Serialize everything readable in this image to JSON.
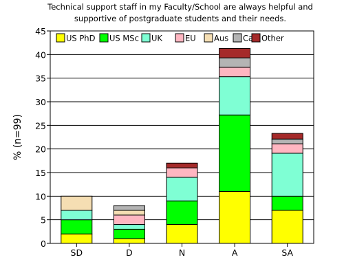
{
  "chart_data": {
    "type": "bar",
    "stacked": true,
    "title_lines": [
      "Technical support staff in my Faculty/School are always helpful and",
      "supportive of postgraduate students and their needs."
    ],
    "xlabel": "",
    "ylabel": "% (n=99)",
    "ylim": [
      0,
      45
    ],
    "yticks": [
      0,
      5,
      10,
      15,
      20,
      25,
      30,
      35,
      40,
      45
    ],
    "grid": "horizontal",
    "legend_placement": "top",
    "categories": [
      "SD",
      "D",
      "N",
      "A",
      "SA"
    ],
    "series": [
      {
        "name": "US PhD",
        "color": "#ffff00",
        "values": [
          2,
          1,
          4,
          11,
          7
        ]
      },
      {
        "name": "US MSc",
        "color": "#00ff00",
        "values": [
          3,
          2,
          5,
          16.2,
          3
        ]
      },
      {
        "name": "UK",
        "color": "#7fffd4",
        "values": [
          2,
          1,
          5,
          8.1,
          9.1
        ]
      },
      {
        "name": "EU",
        "color": "#ffb6c1",
        "values": [
          0,
          2,
          2,
          2,
          2
        ]
      },
      {
        "name": "Aus",
        "color": "#f5deb3",
        "values": [
          3,
          1,
          0,
          0,
          0
        ]
      },
      {
        "name": "Ca",
        "color": "#b4b4b4",
        "values": [
          0,
          1,
          0,
          2,
          1
        ]
      },
      {
        "name": "Other",
        "color": "#a52a2a",
        "values": [
          0,
          0,
          1,
          2,
          1.2
        ]
      }
    ]
  }
}
